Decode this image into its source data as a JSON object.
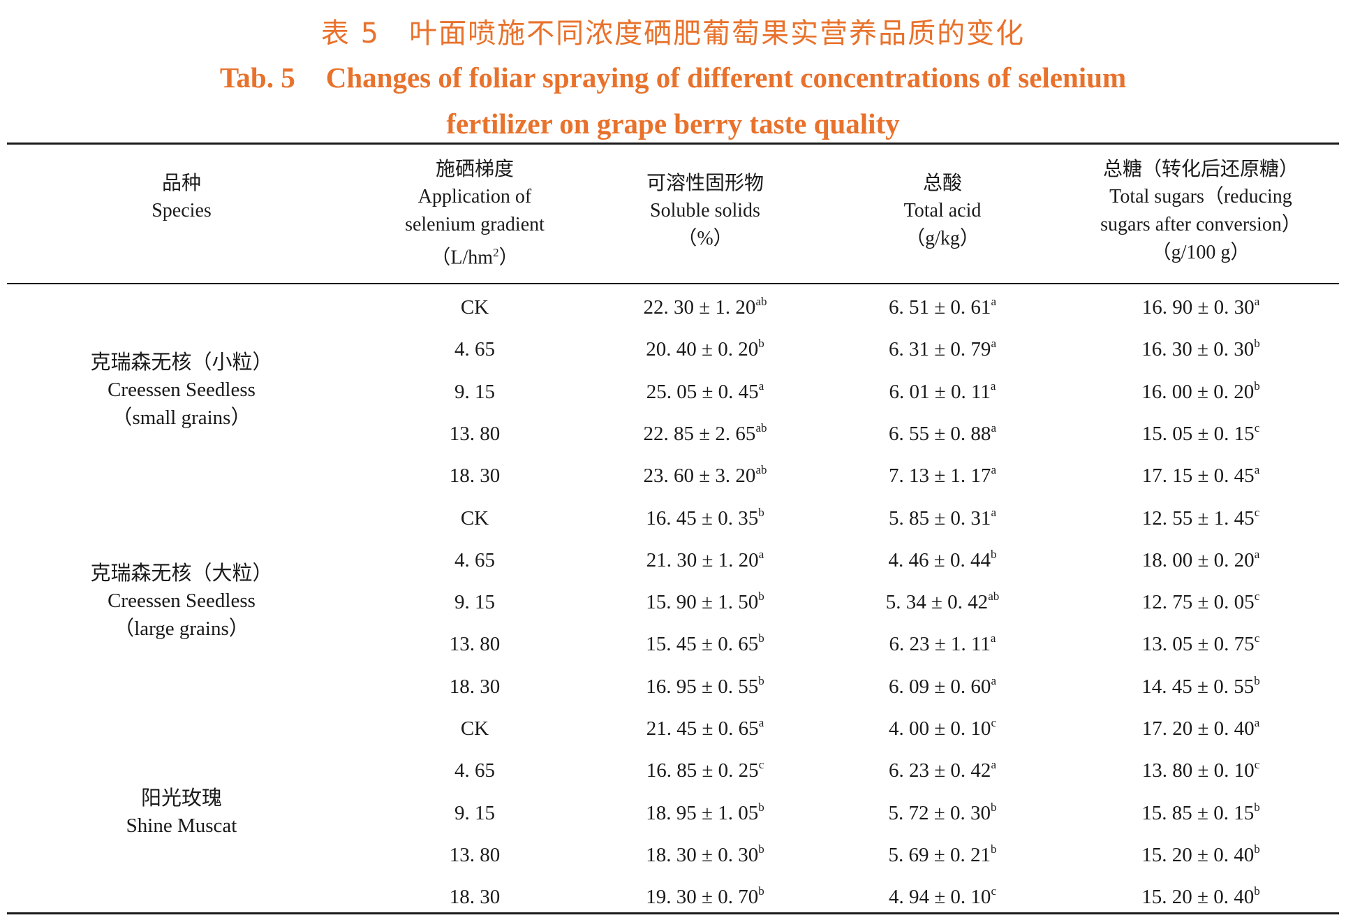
{
  "title": {
    "cn": "表 5　叶面喷施不同浓度硒肥葡萄果实营养品质的变化",
    "en_number": "Tab. 5",
    "en_line1": "Changes of foliar spraying of different concentrations of selenium",
    "en_line2": "fertilizer on grape berry taste quality"
  },
  "columns": {
    "species": {
      "cn": "品种",
      "en": "Species"
    },
    "gradient": {
      "cn": "施硒梯度",
      "en1": "Application of",
      "en2": "selenium gradient",
      "unit_pre": "（L/hm",
      "unit_sup": "2",
      "unit_post": "）"
    },
    "soluble": {
      "cn": "可溶性固形物",
      "en": "Soluble solids",
      "unit": "（%）"
    },
    "acid": {
      "cn": "总酸",
      "en": "Total acid",
      "unit": "（g/kg）"
    },
    "sugar": {
      "cn": "总糖（转化后还原糖）",
      "en1": "Total sugars（reducing",
      "en2": "sugars after conversion）",
      "unit": "（g/100 g）"
    }
  },
  "species": [
    {
      "cn": "克瑞森无核（小粒）",
      "en": "Creessen Seedless",
      "en2": "（small grains）"
    },
    {
      "cn": "克瑞森无核（大粒）",
      "en": "Creessen Seedless",
      "en2": "（large grains）"
    },
    {
      "cn": "阳光玫瑰",
      "en": "Shine Muscat"
    }
  ],
  "rows": [
    {
      "grad": "CK",
      "sol": "22. 30 ± 1. 20",
      "sol_sig": "ab",
      "acid": "6. 51 ± 0. 61",
      "acid_sig": "a",
      "sug": "16. 90 ± 0. 30",
      "sug_sig": "a"
    },
    {
      "grad": "4. 65",
      "sol": "20. 40 ± 0. 20",
      "sol_sig": "b",
      "acid": "6. 31 ± 0. 79",
      "acid_sig": "a",
      "sug": "16. 30 ± 0. 30",
      "sug_sig": "b"
    },
    {
      "grad": "9. 15",
      "sol": "25. 05 ± 0. 45",
      "sol_sig": "a",
      "acid": "6. 01 ± 0. 11",
      "acid_sig": "a",
      "sug": "16. 00 ± 0. 20",
      "sug_sig": "b"
    },
    {
      "grad": "13. 80",
      "sol": "22. 85 ± 2. 65",
      "sol_sig": "ab",
      "acid": "6. 55 ± 0. 88",
      "acid_sig": "a",
      "sug": "15. 05 ± 0. 15",
      "sug_sig": "c"
    },
    {
      "grad": "18. 30",
      "sol": "23. 60 ± 3. 20",
      "sol_sig": "ab",
      "acid": "7. 13 ± 1. 17",
      "acid_sig": "a",
      "sug": "17. 15 ± 0. 45",
      "sug_sig": "a"
    },
    {
      "grad": "CK",
      "sol": "16. 45 ± 0. 35",
      "sol_sig": "b",
      "acid": "5. 85 ± 0. 31",
      "acid_sig": "a",
      "sug": "12. 55 ± 1. 45",
      "sug_sig": "c"
    },
    {
      "grad": "4. 65",
      "sol": "21. 30 ± 1. 20",
      "sol_sig": "a",
      "acid": "4. 46 ± 0. 44",
      "acid_sig": "b",
      "sug": "18. 00 ± 0. 20",
      "sug_sig": "a"
    },
    {
      "grad": "9. 15",
      "sol": "15. 90 ± 1. 50",
      "sol_sig": "b",
      "acid": "5. 34 ± 0. 42",
      "acid_sig": "ab",
      "sug": "12. 75 ± 0. 05",
      "sug_sig": "c"
    },
    {
      "grad": "13. 80",
      "sol": "15. 45 ± 0. 65",
      "sol_sig": "b",
      "acid": "6. 23 ± 1. 11",
      "acid_sig": "a",
      "sug": "13. 05 ± 0. 75",
      "sug_sig": "c"
    },
    {
      "grad": "18. 30",
      "sol": "16. 95 ± 0. 55",
      "sol_sig": "b",
      "acid": "6. 09 ± 0. 60",
      "acid_sig": "a",
      "sug": "14. 45 ± 0. 55",
      "sug_sig": "b"
    },
    {
      "grad": "CK",
      "sol": "21. 45 ± 0. 65",
      "sol_sig": "a",
      "acid": "4. 00 ± 0. 10",
      "acid_sig": "c",
      "sug": "17. 20 ± 0. 40",
      "sug_sig": "a"
    },
    {
      "grad": "4. 65",
      "sol": "16. 85 ± 0. 25",
      "sol_sig": "c",
      "acid": "6. 23 ± 0. 42",
      "acid_sig": "a",
      "sug": "13. 80 ± 0. 10",
      "sug_sig": "c"
    },
    {
      "grad": "9. 15",
      "sol": "18. 95 ± 1. 05",
      "sol_sig": "b",
      "acid": "5. 72 ± 0. 30",
      "acid_sig": "b",
      "sug": "15. 85 ± 0. 15",
      "sug_sig": "b"
    },
    {
      "grad": "13. 80",
      "sol": "18. 30 ± 0. 30",
      "sol_sig": "b",
      "acid": "5. 69 ± 0. 21",
      "acid_sig": "b",
      "sug": "15. 20 ± 0. 40",
      "sug_sig": "b"
    },
    {
      "grad": "18. 30",
      "sol": "19. 30 ± 0. 70",
      "sol_sig": "b",
      "acid": "4. 94 ± 0. 10",
      "acid_sig": "c",
      "sug": "15. 20 ± 0. 40",
      "sug_sig": "b"
    }
  ]
}
